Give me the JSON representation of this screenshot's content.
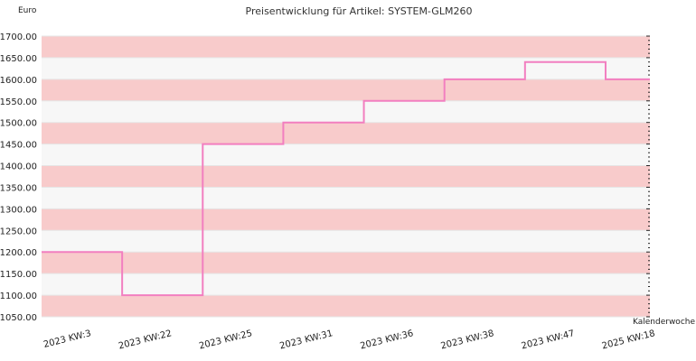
{
  "chart_data": {
    "type": "line",
    "step": true,
    "title": "Preisentwicklung für Artikel: SYSTEM-GLM260",
    "ylabel": "Euro",
    "xlabel": "Kalenderwoche",
    "ylim": [
      1050,
      1700
    ],
    "yticks": [
      "1050.00",
      "1100.00",
      "1150.00",
      "1200.00",
      "1250.00",
      "1300.00",
      "1350.00",
      "1400.00",
      "1450.00",
      "1500.00",
      "1550.00",
      "1600.00",
      "1650.00",
      "1700.00"
    ],
    "categories": [
      "2023 KW:3",
      "2023 KW:22",
      "2023 KW:25",
      "2023 KW:31",
      "2023 KW:36",
      "2023 KW:38",
      "2023 KW:47",
      "2025 KW:18"
    ],
    "series": [
      {
        "values": [
          1200,
          1100,
          1450,
          1500,
          1550,
          1600,
          1640,
          1600
        ]
      }
    ],
    "grid": true,
    "band_colors": [
      "#f8cbcb",
      "#f7f7f7"
    ],
    "line_color": "#f27fc0"
  }
}
